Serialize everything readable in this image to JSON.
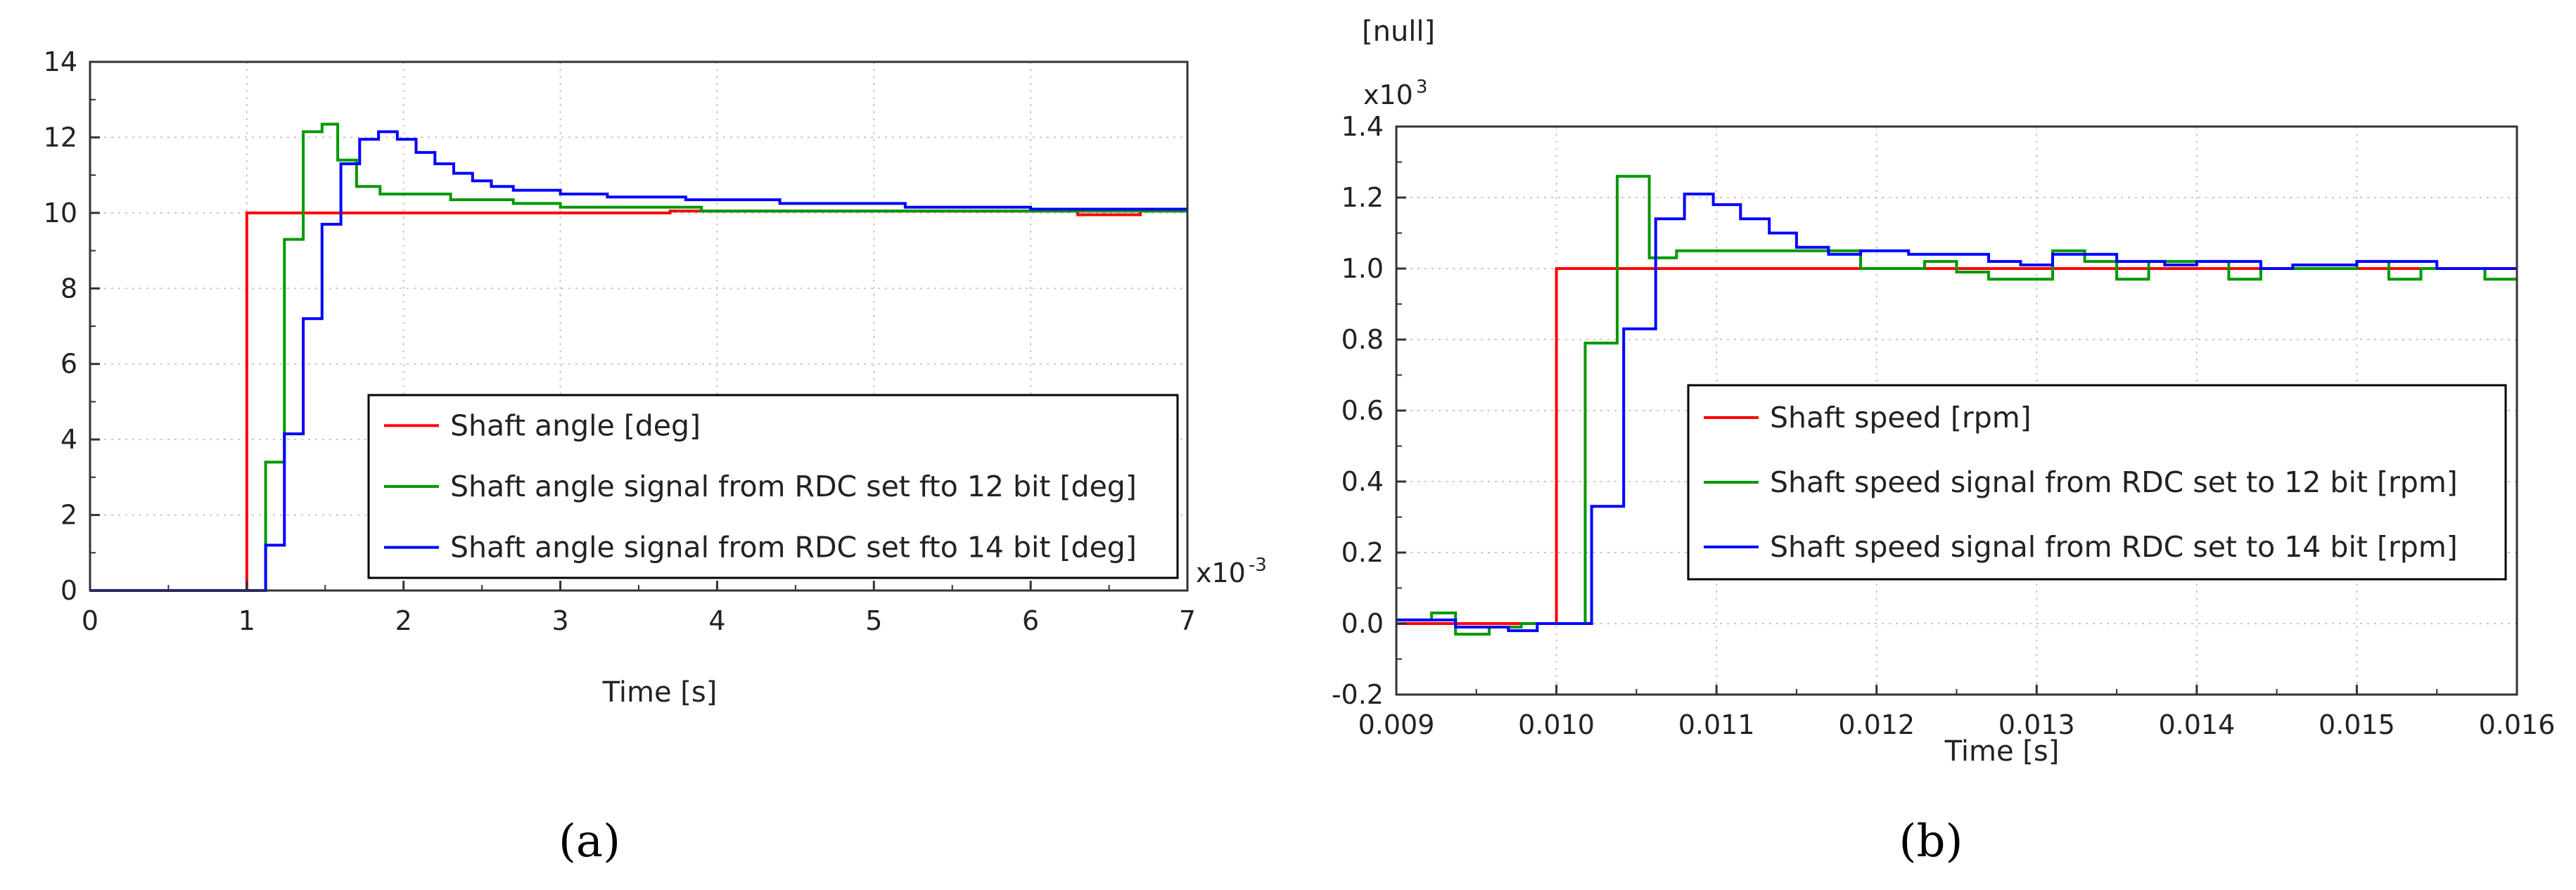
{
  "chart_data": [
    {
      "panel": "(a)",
      "type": "line",
      "step": true,
      "xlabel": "Time [s]",
      "x_multiplier": "x10",
      "x_multiplier_exp": "-3",
      "xlim": [
        0,
        7
      ],
      "ylim": [
        0,
        14
      ],
      "xticks": [
        "0",
        "1",
        "2",
        "3",
        "4",
        "5",
        "6",
        "7"
      ],
      "yticks": [
        "0",
        "2",
        "4",
        "6",
        "8",
        "10",
        "12",
        "14"
      ],
      "grid": true,
      "legend_position": "lower-right",
      "series": [
        {
          "name": "Shaft angle [deg]",
          "color": "#ff0000",
          "points": [
            [
              0,
              0
            ],
            [
              1,
              0
            ],
            [
              1,
              10
            ],
            [
              3.7,
              10
            ],
            [
              3.7,
              10.05
            ],
            [
              6.3,
              10.05
            ],
            [
              6.3,
              9.95
            ],
            [
              6.7,
              9.95
            ],
            [
              6.7,
              10.05
            ],
            [
              7,
              10.05
            ]
          ]
        },
        {
          "name": "Shaft angle signal from RDC set fto 12 bit [deg]",
          "color": "#009900",
          "points": [
            [
              0,
              0
            ],
            [
              1.12,
              0
            ],
            [
              1.12,
              3.4
            ],
            [
              1.24,
              3.4
            ],
            [
              1.24,
              9.3
            ],
            [
              1.36,
              9.3
            ],
            [
              1.36,
              12.15
            ],
            [
              1.48,
              12.15
            ],
            [
              1.48,
              12.35
            ],
            [
              1.58,
              12.35
            ],
            [
              1.58,
              11.4
            ],
            [
              1.7,
              11.4
            ],
            [
              1.7,
              10.7
            ],
            [
              1.85,
              10.7
            ],
            [
              1.85,
              10.5
            ],
            [
              2.3,
              10.5
            ],
            [
              2.3,
              10.35
            ],
            [
              2.7,
              10.35
            ],
            [
              2.7,
              10.25
            ],
            [
              3.0,
              10.25
            ],
            [
              3.0,
              10.15
            ],
            [
              3.9,
              10.15
            ],
            [
              3.9,
              10.05
            ],
            [
              7,
              10.05
            ]
          ]
        },
        {
          "name": "Shaft angle signal from RDC set fto 14 bit [deg]",
          "color": "#0000ff",
          "points": [
            [
              0,
              0
            ],
            [
              1.12,
              0
            ],
            [
              1.12,
              1.2
            ],
            [
              1.24,
              1.2
            ],
            [
              1.24,
              4.15
            ],
            [
              1.36,
              4.15
            ],
            [
              1.36,
              7.2
            ],
            [
              1.48,
              7.2
            ],
            [
              1.48,
              9.7
            ],
            [
              1.6,
              9.7
            ],
            [
              1.6,
              11.3
            ],
            [
              1.72,
              11.3
            ],
            [
              1.72,
              11.95
            ],
            [
              1.84,
              11.95
            ],
            [
              1.84,
              12.15
            ],
            [
              1.96,
              12.15
            ],
            [
              1.96,
              11.95
            ],
            [
              2.08,
              11.95
            ],
            [
              2.08,
              11.6
            ],
            [
              2.2,
              11.6
            ],
            [
              2.2,
              11.3
            ],
            [
              2.32,
              11.3
            ],
            [
              2.32,
              11.05
            ],
            [
              2.44,
              11.05
            ],
            [
              2.44,
              10.85
            ],
            [
              2.56,
              10.85
            ],
            [
              2.56,
              10.7
            ],
            [
              2.7,
              10.7
            ],
            [
              2.7,
              10.6
            ],
            [
              3.0,
              10.6
            ],
            [
              3.0,
              10.5
            ],
            [
              3.3,
              10.5
            ],
            [
              3.3,
              10.42
            ],
            [
              3.8,
              10.42
            ],
            [
              3.8,
              10.35
            ],
            [
              4.4,
              10.35
            ],
            [
              4.4,
              10.25
            ],
            [
              5.2,
              10.25
            ],
            [
              5.2,
              10.15
            ],
            [
              6.0,
              10.15
            ],
            [
              6.0,
              10.1
            ],
            [
              7,
              10.1
            ]
          ]
        }
      ]
    },
    {
      "panel": "(b)",
      "type": "line",
      "step": true,
      "xlabel": "Time [s]",
      "ylabel": "[null]",
      "y_multiplier": "x10",
      "y_multiplier_exp": "3",
      "xlim": [
        0.009,
        0.016
      ],
      "ylim": [
        -0.2,
        1.4
      ],
      "xticks": [
        "0.009",
        "0.010",
        "0.011",
        "0.012",
        "0.013",
        "0.014",
        "0.015",
        "0.016"
      ],
      "yticks": [
        "-0.2",
        "0.0",
        "0.2",
        "0.4",
        "0.6",
        "0.8",
        "1.0",
        "1.2",
        "1.4"
      ],
      "grid": true,
      "legend_position": "lower-right",
      "series": [
        {
          "name": "Shaft speed [rpm]",
          "color": "#ff0000",
          "points": [
            [
              0.009,
              0.0
            ],
            [
              0.01,
              0.0
            ],
            [
              0.01,
              1.0
            ],
            [
              0.016,
              1.0
            ]
          ]
        },
        {
          "name": "Shaft speed signal from RDC set to 12 bit [rpm]",
          "color": "#009900",
          "points": [
            [
              0.009,
              0.01
            ],
            [
              0.00922,
              0.01
            ],
            [
              0.00922,
              0.03
            ],
            [
              0.00937,
              0.03
            ],
            [
              0.00937,
              -0.03
            ],
            [
              0.00958,
              -0.03
            ],
            [
              0.00958,
              -0.01
            ],
            [
              0.00978,
              -0.01
            ],
            [
              0.00978,
              0.0
            ],
            [
              0.01018,
              0.0
            ],
            [
              0.01018,
              0.79
            ],
            [
              0.01038,
              0.79
            ],
            [
              0.01038,
              1.26
            ],
            [
              0.01058,
              1.26
            ],
            [
              0.01058,
              1.03
            ],
            [
              0.01075,
              1.03
            ],
            [
              0.01075,
              1.05
            ],
            [
              0.0119,
              1.05
            ],
            [
              0.0119,
              1.0
            ],
            [
              0.0123,
              1.0
            ],
            [
              0.0123,
              1.02
            ],
            [
              0.0125,
              1.02
            ],
            [
              0.0125,
              0.99
            ],
            [
              0.0127,
              0.99
            ],
            [
              0.0127,
              0.97
            ],
            [
              0.0131,
              0.97
            ],
            [
              0.0131,
              1.05
            ],
            [
              0.0133,
              1.05
            ],
            [
              0.0133,
              1.02
            ],
            [
              0.0135,
              1.02
            ],
            [
              0.0135,
              0.97
            ],
            [
              0.0137,
              0.97
            ],
            [
              0.0137,
              1.02
            ],
            [
              0.0142,
              1.02
            ],
            [
              0.0142,
              0.97
            ],
            [
              0.0144,
              0.97
            ],
            [
              0.0144,
              1.0
            ],
            [
              0.015,
              1.0
            ],
            [
              0.015,
              1.02
            ],
            [
              0.0152,
              1.02
            ],
            [
              0.0152,
              0.97
            ],
            [
              0.0154,
              0.97
            ],
            [
              0.0154,
              1.0
            ],
            [
              0.0158,
              1.0
            ],
            [
              0.0158,
              0.97
            ],
            [
              0.016,
              0.97
            ]
          ]
        },
        {
          "name": "Shaft speed signal from RDC set to 14 bit [rpm]",
          "color": "#0000ff",
          "points": [
            [
              0.009,
              0.01
            ],
            [
              0.00937,
              0.01
            ],
            [
              0.00937,
              -0.01
            ],
            [
              0.0097,
              -0.01
            ],
            [
              0.0097,
              -0.02
            ],
            [
              0.00988,
              -0.02
            ],
            [
              0.00988,
              0.0
            ],
            [
              0.01022,
              0.0
            ],
            [
              0.01022,
              0.33
            ],
            [
              0.01042,
              0.33
            ],
            [
              0.01042,
              0.83
            ],
            [
              0.01062,
              0.83
            ],
            [
              0.01062,
              1.14
            ],
            [
              0.0108,
              1.14
            ],
            [
              0.0108,
              1.21
            ],
            [
              0.01098,
              1.21
            ],
            [
              0.01098,
              1.18
            ],
            [
              0.01115,
              1.18
            ],
            [
              0.01115,
              1.14
            ],
            [
              0.01133,
              1.14
            ],
            [
              0.01133,
              1.1
            ],
            [
              0.0115,
              1.1
            ],
            [
              0.0115,
              1.06
            ],
            [
              0.0117,
              1.06
            ],
            [
              0.0117,
              1.04
            ],
            [
              0.0119,
              1.04
            ],
            [
              0.0119,
              1.05
            ],
            [
              0.0122,
              1.05
            ],
            [
              0.0122,
              1.04
            ],
            [
              0.0127,
              1.04
            ],
            [
              0.0127,
              1.02
            ],
            [
              0.0129,
              1.02
            ],
            [
              0.0129,
              1.01
            ],
            [
              0.0131,
              1.01
            ],
            [
              0.0131,
              1.04
            ],
            [
              0.0135,
              1.04
            ],
            [
              0.0135,
              1.02
            ],
            [
              0.0138,
              1.02
            ],
            [
              0.0138,
              1.01
            ],
            [
              0.014,
              1.01
            ],
            [
              0.014,
              1.02
            ],
            [
              0.0144,
              1.02
            ],
            [
              0.0144,
              1.0
            ],
            [
              0.0146,
              1.0
            ],
            [
              0.0146,
              1.01
            ],
            [
              0.015,
              1.01
            ],
            [
              0.015,
              1.02
            ],
            [
              0.0155,
              1.02
            ],
            [
              0.0155,
              1.0
            ],
            [
              0.016,
              1.0
            ]
          ]
        }
      ]
    }
  ]
}
